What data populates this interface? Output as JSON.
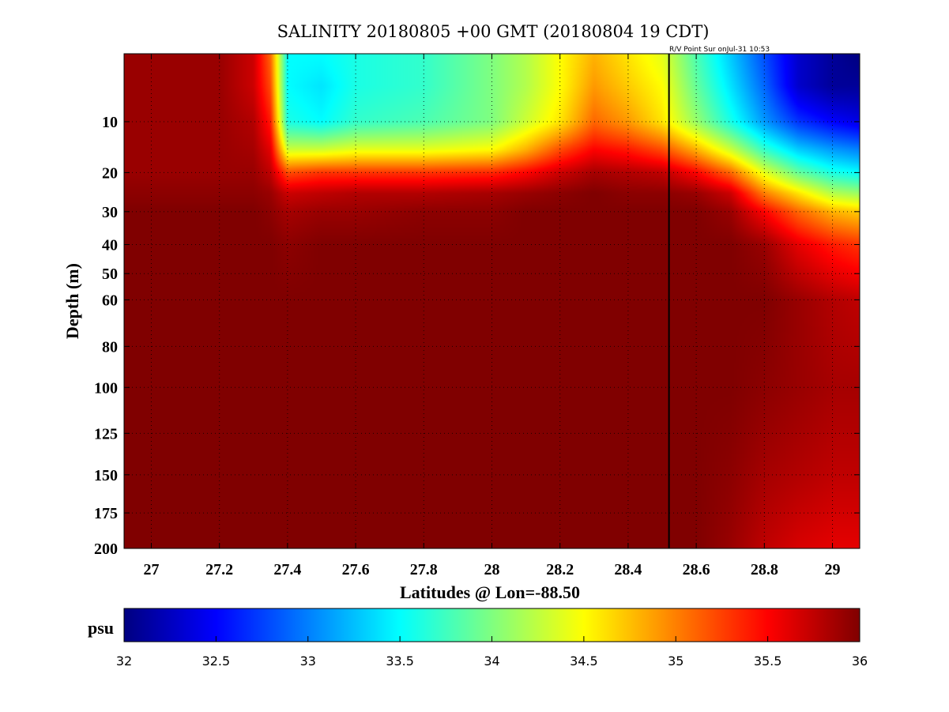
{
  "chart_data": {
    "type": "heatmap",
    "title": "SALINITY 20180805 +00 GMT (20180804 19 CDT)",
    "annotation": "R/V Point Sur onJul-31 10:53",
    "xlabel": "Latitudes @ Lon=-88.50",
    "ylabel": "Depth (m)",
    "xlim": [
      26.92,
      29.08
    ],
    "ylim": [
      2,
      200
    ],
    "y_scale": "sqrt",
    "y_reversed": true,
    "x_ticks": [
      27,
      27.2,
      27.4,
      27.6,
      27.8,
      28,
      28.2,
      28.4,
      28.6,
      28.8,
      29
    ],
    "x_tick_labels": [
      "27",
      "27.2",
      "27.4",
      "27.6",
      "27.8",
      "28",
      "28.2",
      "28.4",
      "28.6",
      "28.8",
      "29"
    ],
    "y_ticks": [
      10,
      20,
      30,
      40,
      50,
      60,
      80,
      100,
      125,
      150,
      175,
      200
    ],
    "y_tick_labels": [
      "10",
      "20",
      "30",
      "40",
      "50",
      "60",
      "80",
      "100",
      "125",
      "150",
      "175",
      "200"
    ],
    "grid": true,
    "vertical_line_x": 28.52,
    "colorbar": {
      "label": "psu",
      "range": [
        32,
        36
      ],
      "ticks": [
        32,
        32.5,
        33,
        33.5,
        34,
        34.5,
        35,
        35.5,
        36
      ],
      "tick_labels": [
        "32",
        "32.5",
        "33",
        "33.5",
        "34",
        "34.5",
        "35",
        "35.5",
        "36"
      ],
      "colormap": "jet"
    },
    "salinity_profiles": {
      "latitudes": [
        26.92,
        27.0,
        27.2,
        27.3,
        27.35,
        27.4,
        27.5,
        27.6,
        27.8,
        28.0,
        28.1,
        28.2,
        28.3,
        28.4,
        28.5,
        28.6,
        28.7,
        28.8,
        28.9,
        29.0,
        29.08
      ],
      "depths": [
        2,
        5,
        10,
        15,
        20,
        25,
        30,
        40,
        60,
        100,
        150,
        200
      ],
      "values": [
        [
          35.9,
          35.9,
          35.9,
          35.9,
          35.9,
          35.95,
          36.0,
          36.0,
          36.0,
          36.0,
          36.0,
          36.0
        ],
        [
          35.9,
          35.9,
          35.9,
          35.9,
          35.9,
          35.95,
          36.0,
          36.0,
          36.0,
          36.0,
          36.0,
          36.0
        ],
        [
          35.9,
          35.9,
          35.9,
          35.9,
          35.9,
          35.95,
          36.0,
          36.0,
          36.0,
          36.0,
          36.0,
          36.0
        ],
        [
          35.7,
          35.7,
          35.8,
          35.85,
          35.9,
          35.95,
          36.0,
          36.0,
          36.0,
          36.0,
          36.0,
          36.0
        ],
        [
          35.1,
          35.2,
          35.4,
          35.6,
          35.75,
          35.9,
          35.95,
          36.0,
          36.0,
          36.0,
          36.0,
          36.0
        ],
        [
          33.5,
          33.5,
          33.6,
          34.3,
          35.2,
          35.7,
          35.85,
          35.95,
          36.0,
          36.0,
          36.0,
          36.0
        ],
        [
          33.5,
          33.4,
          33.5,
          34.3,
          35.3,
          35.75,
          35.9,
          36.0,
          36.0,
          36.0,
          36.0,
          36.0
        ],
        [
          33.6,
          33.6,
          33.7,
          34.4,
          35.3,
          35.8,
          35.9,
          36.0,
          36.0,
          36.0,
          36.0,
          36.0
        ],
        [
          33.7,
          33.7,
          33.8,
          34.4,
          35.3,
          35.8,
          35.95,
          36.0,
          36.0,
          36.0,
          36.0,
          36.0
        ],
        [
          34.0,
          34.0,
          34.0,
          34.5,
          35.35,
          35.85,
          35.95,
          36.0,
          36.0,
          36.0,
          36.0,
          36.0
        ],
        [
          34.2,
          34.2,
          34.3,
          34.8,
          35.5,
          35.9,
          36.0,
          36.0,
          36.0,
          36.0,
          36.0,
          36.0
        ],
        [
          34.5,
          34.5,
          34.6,
          35.2,
          35.7,
          35.95,
          36.0,
          36.0,
          36.0,
          36.0,
          36.0,
          36.0
        ],
        [
          34.8,
          34.9,
          35.1,
          35.5,
          35.85,
          36.0,
          36.0,
          36.0,
          36.0,
          36.0,
          36.0,
          36.0
        ],
        [
          34.6,
          34.7,
          34.9,
          35.4,
          35.8,
          35.95,
          36.0,
          36.0,
          36.0,
          36.0,
          36.0,
          36.0
        ],
        [
          34.4,
          34.5,
          34.6,
          35.2,
          35.75,
          35.95,
          36.0,
          36.0,
          36.0,
          36.0,
          36.0,
          36.0
        ],
        [
          33.8,
          33.9,
          34.1,
          34.8,
          35.5,
          35.9,
          36.0,
          36.0,
          36.0,
          36.0,
          36.0,
          36.0
        ],
        [
          33.3,
          33.4,
          33.6,
          34.3,
          35.1,
          35.7,
          35.9,
          36.0,
          36.0,
          36.0,
          35.95,
          35.9
        ],
        [
          32.8,
          32.9,
          33.1,
          33.7,
          34.4,
          35.0,
          35.5,
          35.9,
          36.0,
          35.95,
          35.85,
          35.75
        ],
        [
          32.3,
          32.3,
          32.7,
          33.3,
          33.9,
          34.6,
          35.1,
          35.6,
          35.9,
          35.9,
          35.8,
          35.65
        ],
        [
          32.1,
          32.1,
          32.5,
          33.1,
          33.6,
          34.2,
          34.8,
          35.4,
          35.8,
          35.85,
          35.75,
          35.6
        ],
        [
          32.0,
          32.1,
          32.4,
          33.0,
          33.5,
          34.1,
          34.7,
          35.3,
          35.75,
          35.85,
          35.75,
          35.6
        ]
      ]
    }
  }
}
